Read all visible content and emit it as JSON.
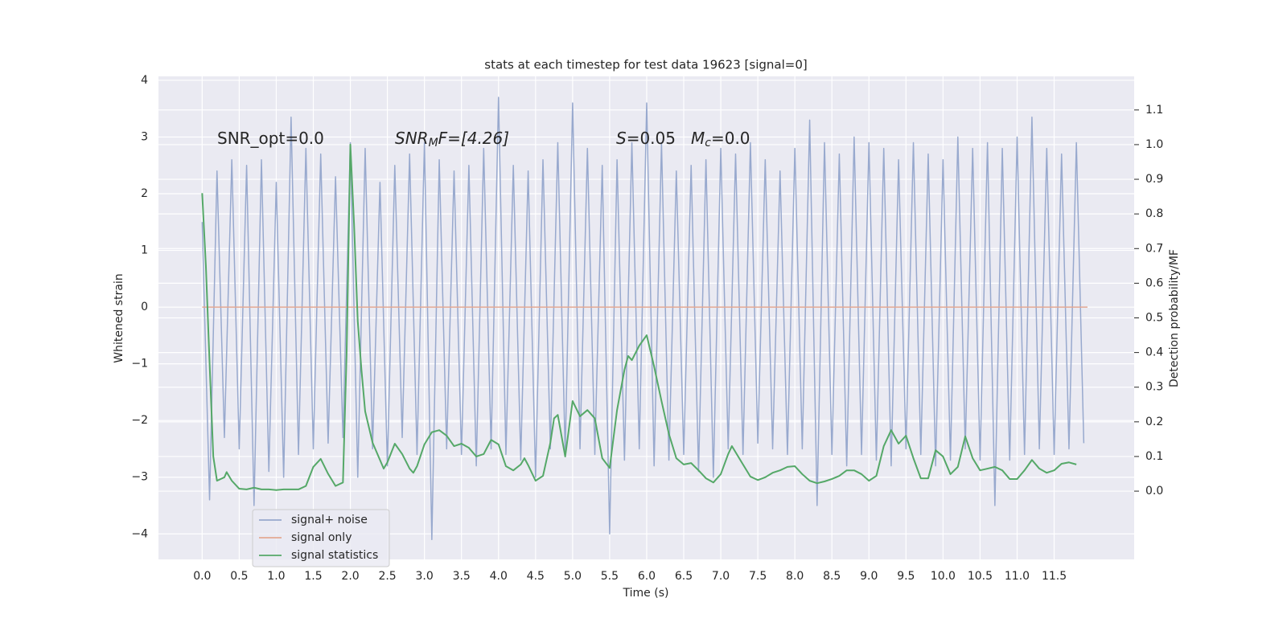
{
  "chart_data": {
    "type": "line",
    "title": "stats at each timestep for test data 19623 [signal=0]",
    "xlabel": "Time (s)",
    "ylabel": "Whitened strain",
    "y2label": "Detection probability/MF",
    "annotations": [
      [
        "SNR_opt=0.0"
      ],
      [
        "SNR",
        "M",
        "F=[4.26]"
      ],
      [
        "S",
        "=0.05"
      ],
      [
        "M",
        "c",
        "=0.0"
      ]
    ],
    "xlim": [
      -0.59,
      12.58
    ],
    "ylim": [
      -4.45,
      4.07
    ],
    "y2lim": [
      -0.197,
      1.197
    ],
    "xticks": [
      {
        "value": 0,
        "label": "0.0"
      },
      0.5,
      {
        "value": 1,
        "label": "1.0"
      },
      1.5,
      {
        "value": 2,
        "label": "2.0"
      },
      2.5,
      {
        "value": 3,
        "label": "3.0"
      },
      3.5,
      {
        "value": 4,
        "label": "4.0"
      },
      4.5,
      {
        "value": 5,
        "label": "5.0"
      },
      5.5,
      {
        "value": 6,
        "label": "6.0"
      },
      6.5,
      {
        "value": 7,
        "label": "7.0"
      },
      7.5,
      {
        "value": 8,
        "label": "8.0"
      },
      8.5,
      {
        "value": 9,
        "label": "9.0"
      },
      9.5,
      {
        "value": 10,
        "label": "10.0"
      },
      10.5,
      {
        "value": 11,
        "label": "11.0"
      },
      11.5
    ],
    "yticks": [
      {
        "value": -4,
        "label": "−4"
      },
      {
        "value": -3,
        "label": "−3"
      },
      {
        "value": -2,
        "label": "−2"
      },
      {
        "value": -1,
        "label": "−1"
      },
      0,
      1,
      2,
      3,
      4
    ],
    "y2ticks": [
      {
        "value": 0,
        "label": "0.0"
      },
      0.1,
      0.2,
      0.3,
      0.4,
      0.5,
      0.6,
      0.7,
      0.8,
      0.9,
      {
        "value": 1,
        "label": "1.0"
      },
      1.1
    ],
    "grid": true,
    "legend": "lower left",
    "series": [
      {
        "name": "signal+ noise",
        "color": "#98a9ce",
        "axis": "y",
        "x": [
          0,
          0.1,
          0.2,
          0.3,
          0.4,
          0.5,
          0.6,
          0.7,
          0.8,
          0.9,
          1,
          1.1,
          1.2,
          1.3,
          1.4,
          1.5,
          1.6,
          1.7,
          1.8,
          1.9,
          2,
          2.1,
          2.2,
          2.3,
          2.4,
          2.5,
          2.6,
          2.7,
          2.8,
          2.9,
          3,
          3.1,
          3.2,
          3.3,
          3.4,
          3.5,
          3.6,
          3.7,
          3.8,
          3.9,
          4,
          4.1,
          4.2,
          4.3,
          4.4,
          4.5,
          4.6,
          4.7,
          4.8,
          4.9,
          5,
          5.1,
          5.2,
          5.3,
          5.4,
          5.5,
          5.6,
          5.7,
          5.8,
          5.9,
          6,
          6.1,
          6.2,
          6.3,
          6.4,
          6.5,
          6.6,
          6.7,
          6.8,
          6.9,
          7,
          7.1,
          7.2,
          7.3,
          7.4,
          7.5,
          7.6,
          7.7,
          7.8,
          7.9,
          8,
          8.1,
          8.2,
          8.3,
          8.4,
          8.5,
          8.6,
          8.7,
          8.8,
          8.9,
          9,
          9.1,
          9.2,
          9.3,
          9.4,
          9.5,
          9.6,
          9.7,
          9.8,
          9.9,
          10,
          10.1,
          10.2,
          10.3,
          10.4,
          10.5,
          10.6,
          10.7,
          10.8,
          10.9,
          11,
          11.1,
          11.2,
          11.3,
          11.4,
          11.5,
          11.6,
          11.7,
          11.8,
          11.9
        ],
        "values": [
          1.5,
          -3.4,
          2.4,
          -2.3,
          2.6,
          -2.5,
          2.5,
          -3.5,
          2.6,
          -2.9,
          2.2,
          -3.0,
          3.35,
          -2.6,
          2.8,
          -2.5,
          2.7,
          -2.4,
          2.3,
          -2.3,
          2.9,
          -3.0,
          2.8,
          -2.5,
          2.2,
          -2.8,
          2.5,
          -2.3,
          2.7,
          -2.6,
          2.9,
          -4.1,
          2.6,
          -2.5,
          2.4,
          -2.6,
          2.5,
          -2.8,
          2.8,
          -2.5,
          3.7,
          -2.6,
          2.5,
          -2.7,
          2.4,
          -3.0,
          2.6,
          -2.5,
          2.9,
          -2.6,
          3.6,
          -2.5,
          2.8,
          -2.6,
          2.5,
          -4.0,
          2.6,
          -2.7,
          2.9,
          -2.5,
          3.6,
          -2.8,
          2.9,
          -2.7,
          2.4,
          -2.6,
          2.5,
          -2.9,
          2.6,
          -3.0,
          2.8,
          -2.5,
          2.7,
          -2.6,
          2.9,
          -2.4,
          2.6,
          -2.5,
          2.4,
          -2.6,
          2.8,
          -2.5,
          3.3,
          -3.5,
          2.9,
          -2.6,
          2.7,
          -2.8,
          3.0,
          -2.6,
          2.9,
          -2.7,
          2.8,
          -2.8,
          2.6,
          -2.5,
          2.9,
          -2.6,
          2.7,
          -2.8,
          2.6,
          -2.7,
          3.0,
          -2.5,
          2.8,
          -2.7,
          2.9,
          -3.5,
          2.8,
          -2.7,
          3.0,
          -2.6,
          3.35,
          -2.5,
          2.8,
          -2.6,
          2.7,
          -2.5,
          2.9,
          -2.4
        ]
      },
      {
        "name": "signal only",
        "color": "#e3a993",
        "axis": "y",
        "x": [
          0,
          11.95
        ],
        "values": [
          0,
          0
        ]
      },
      {
        "name": "signal statistics",
        "color": "#55a868",
        "axis": "y2",
        "x": [
          0,
          0.05,
          0.1,
          0.15,
          0.2,
          0.3,
          0.33,
          0.4,
          0.5,
          0.6,
          0.7,
          0.8,
          0.9,
          1.0,
          1.1,
          1.2,
          1.3,
          1.4,
          1.5,
          1.6,
          1.7,
          1.8,
          1.9,
          1.95,
          2.0,
          2.05,
          2.1,
          2.15,
          2.2,
          2.3,
          2.4,
          2.45,
          2.5,
          2.6,
          2.7,
          2.8,
          2.85,
          2.9,
          3.0,
          3.1,
          3.2,
          3.3,
          3.4,
          3.5,
          3.6,
          3.7,
          3.8,
          3.9,
          4.0,
          4.1,
          4.2,
          4.3,
          4.35,
          4.4,
          4.5,
          4.6,
          4.7,
          4.75,
          4.8,
          4.9,
          5.0,
          5.1,
          5.2,
          5.3,
          5.4,
          5.5,
          5.6,
          5.7,
          5.75,
          5.8,
          5.9,
          6.0,
          6.1,
          6.2,
          6.3,
          6.4,
          6.5,
          6.6,
          6.7,
          6.8,
          6.9,
          7.0,
          7.1,
          7.15,
          7.3,
          7.4,
          7.5,
          7.6,
          7.7,
          7.8,
          7.9,
          8.0,
          8.1,
          8.2,
          8.3,
          8.4,
          8.5,
          8.6,
          8.7,
          8.8,
          8.9,
          9.0,
          9.1,
          9.2,
          9.3,
          9.4,
          9.5,
          9.6,
          9.7,
          9.8,
          9.9,
          10.0,
          10.1,
          10.2,
          10.3,
          10.4,
          10.5,
          10.6,
          10.7,
          10.8,
          10.9,
          11.0,
          11.1,
          11.2,
          11.3,
          11.4,
          11.5,
          11.6,
          11.7,
          11.8
        ],
        "values": [
          0.86,
          0.65,
          0.37,
          0.1,
          0.03,
          0.04,
          0.055,
          0.03,
          0.007,
          0.005,
          0.01,
          0.005,
          0.005,
          0.003,
          0.005,
          0.005,
          0.005,
          0.015,
          0.07,
          0.093,
          0.05,
          0.015,
          0.025,
          0.4,
          1.0,
          0.77,
          0.49,
          0.35,
          0.23,
          0.14,
          0.09,
          0.065,
          0.083,
          0.137,
          0.107,
          0.065,
          0.053,
          0.072,
          0.135,
          0.17,
          0.176,
          0.16,
          0.13,
          0.137,
          0.125,
          0.1,
          0.107,
          0.148,
          0.135,
          0.072,
          0.06,
          0.077,
          0.095,
          0.075,
          0.03,
          0.044,
          0.14,
          0.21,
          0.22,
          0.1,
          0.26,
          0.216,
          0.234,
          0.21,
          0.095,
          0.067,
          0.234,
          0.35,
          0.39,
          0.378,
          0.42,
          0.45,
          0.36,
          0.26,
          0.165,
          0.095,
          0.077,
          0.081,
          0.06,
          0.037,
          0.025,
          0.049,
          0.107,
          0.13,
          0.077,
          0.042,
          0.032,
          0.04,
          0.053,
          0.06,
          0.07,
          0.072,
          0.049,
          0.03,
          0.023,
          0.028,
          0.035,
          0.044,
          0.06,
          0.06,
          0.049,
          0.03,
          0.044,
          0.13,
          0.176,
          0.137,
          0.16,
          0.095,
          0.037,
          0.037,
          0.118,
          0.1,
          0.049,
          0.07,
          0.158,
          0.095,
          0.06,
          0.065,
          0.07,
          0.06,
          0.035,
          0.035,
          0.06,
          0.09,
          0.065,
          0.053,
          0.06,
          0.079,
          0.083,
          0.077
        ]
      }
    ]
  }
}
